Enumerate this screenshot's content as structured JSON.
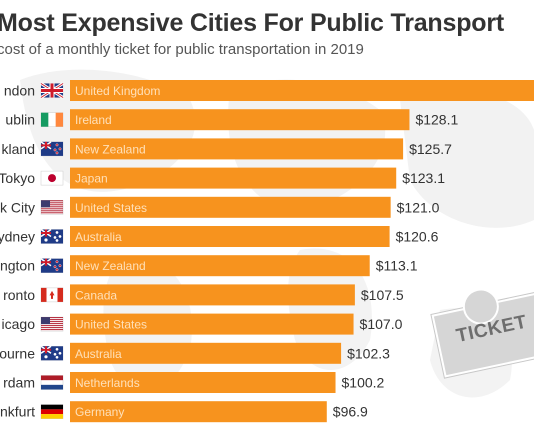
{
  "title": "Most Expensive Cities For Public Transport",
  "subtitle": "cost of a monthly ticket for public transportation in 2019",
  "ticket_label": "TICKET",
  "colors": {
    "bar": "#f7931e",
    "bar_text": "#ffe0b8",
    "value_text": "#333333",
    "city_text": "#333333"
  },
  "chart_data": {
    "type": "bar",
    "orientation": "horizontal",
    "title": "Most Expensive Cities For Public Transport",
    "subtitle": "cost of a monthly ticket for public transportation in 2019",
    "categories": [
      "ndon",
      "ublin",
      "kland",
      "Tokyo",
      "k City",
      "ydney",
      "ngton",
      "ronto",
      "icago",
      "ourne",
      "rdam",
      "nkfurt"
    ],
    "countries": [
      "United Kingdom",
      "Ireland",
      "New Zealand",
      "Japan",
      "United States",
      "Australia",
      "New Zealand",
      "Canada",
      "United States",
      "Australia",
      "Netherlands",
      "Germany"
    ],
    "flags": [
      "uk-flag",
      "ireland-flag",
      "new-zealand-flag",
      "japan-flag",
      "usa-flag",
      "australia-flag",
      "new-zealand-flag",
      "canada-flag",
      "usa-flag",
      "australia-flag",
      "netherlands-flag",
      "germany-flag"
    ],
    "values": [
      null,
      128.1,
      125.7,
      123.1,
      121.0,
      120.6,
      113.1,
      107.5,
      107.0,
      102.3,
      100.2,
      96.9
    ],
    "value_labels": [
      "",
      "$128.1",
      "$125.7",
      "$123.1",
      "$121.0",
      "$120.6",
      "$113.1",
      "$107.5",
      "$107.0",
      "$102.3",
      "$100.2",
      "$96.9"
    ],
    "xlabel": "",
    "ylabel": "",
    "grid": false,
    "legend": "none"
  }
}
